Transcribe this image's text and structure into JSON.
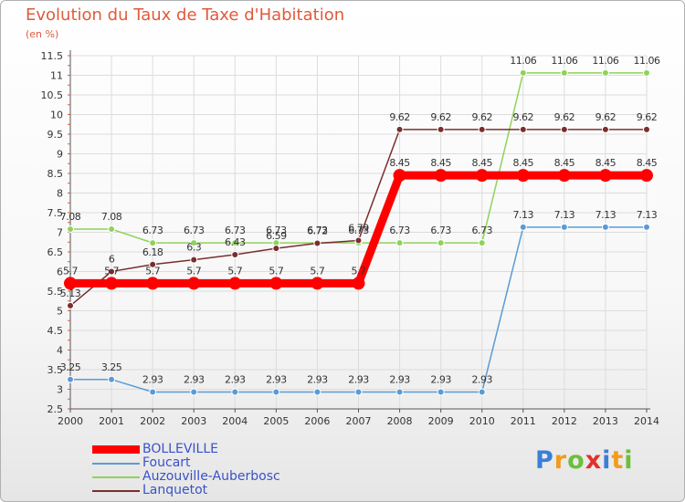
{
  "title": "Evolution du Taux de Taxe d'Habitation",
  "unit": "(en %)",
  "logo": {
    "letters": [
      "P",
      "r",
      "o",
      "x",
      "i",
      "t",
      "i"
    ],
    "colors": [
      "#3b7fd6",
      "#f29b1d",
      "#6cbf3b",
      "#e0312b",
      "#3b7fd6",
      "#f29b1d",
      "#6cbf3b"
    ]
  },
  "chart_data": {
    "type": "line",
    "title": "Evolution du Taux de Taxe d'Habitation",
    "ylabel": "(en %)",
    "x": [
      "2000",
      "2001",
      "2002",
      "2003",
      "2004",
      "2005",
      "2006",
      "2007",
      "2008",
      "2009",
      "2010",
      "2011",
      "2012",
      "2013",
      "2014"
    ],
    "ylim": [
      2.5,
      11.5
    ],
    "yticks": [
      "2.5",
      "3",
      "3.5",
      "4",
      "4.5",
      "5",
      "5.5",
      "6",
      "6.5",
      "7",
      "7.5",
      "8",
      "8.5",
      "9",
      "9.5",
      "10",
      "10.5",
      "11",
      "11.5"
    ],
    "grid": true,
    "legend_position": "bottom-left",
    "series": [
      {
        "name": "BOLLEVILLE",
        "color": "#ff0000",
        "values": [
          5.7,
          5.7,
          5.7,
          5.7,
          5.7,
          5.7,
          5.7,
          5.7,
          8.45,
          8.45,
          8.45,
          8.45,
          8.45,
          8.45,
          8.45
        ],
        "labels": [
          "5.7",
          "5.7",
          "5.7",
          "5.7",
          "5.7",
          "5.7",
          "5.7",
          "5.7",
          "8.45",
          "8.45",
          "8.45",
          "8.45",
          "8.45",
          "8.45",
          "8.45"
        ]
      },
      {
        "name": "Foucart",
        "color": "#5b9bd5",
        "values": [
          3.25,
          3.25,
          2.93,
          2.93,
          2.93,
          2.93,
          2.93,
          2.93,
          2.93,
          2.93,
          2.93,
          7.13,
          7.13,
          7.13,
          7.13
        ],
        "labels": [
          "3.25",
          "3.25",
          "2.93",
          "2.93",
          "2.93",
          "2.93",
          "2.93",
          "2.93",
          "2.93",
          "2.93",
          "2.93",
          "7.13",
          "7.13",
          "7.13",
          "7.13"
        ]
      },
      {
        "name": "Auzouville-Auberbosc",
        "color": "#8ed35a",
        "values": [
          7.08,
          7.08,
          6.73,
          6.73,
          6.73,
          6.73,
          6.73,
          6.73,
          6.73,
          6.73,
          6.73,
          11.06,
          11.06,
          11.06,
          11.06
        ],
        "labels": [
          "7.08",
          "7.08",
          "6.73",
          "6.73",
          "6.73",
          "6.73",
          "6.73",
          "6.73",
          "6.73",
          "6.73",
          "6.73",
          "11.06",
          "11.06",
          "11.06",
          "11.06"
        ]
      },
      {
        "name": "Lanquetot",
        "color": "#7a2e2e",
        "values": [
          5.13,
          6.0,
          6.18,
          6.3,
          6.43,
          6.59,
          6.72,
          6.79,
          9.62,
          9.62,
          9.62,
          9.62,
          9.62,
          9.62,
          9.62
        ],
        "labels": [
          "5.13",
          "6",
          "6.18",
          "6.3",
          "6.43",
          "6.59",
          "6.72",
          "6.79",
          "9.62",
          "9.62",
          "9.62",
          "9.62",
          "9.62",
          "9.62",
          "9.62"
        ]
      }
    ]
  }
}
